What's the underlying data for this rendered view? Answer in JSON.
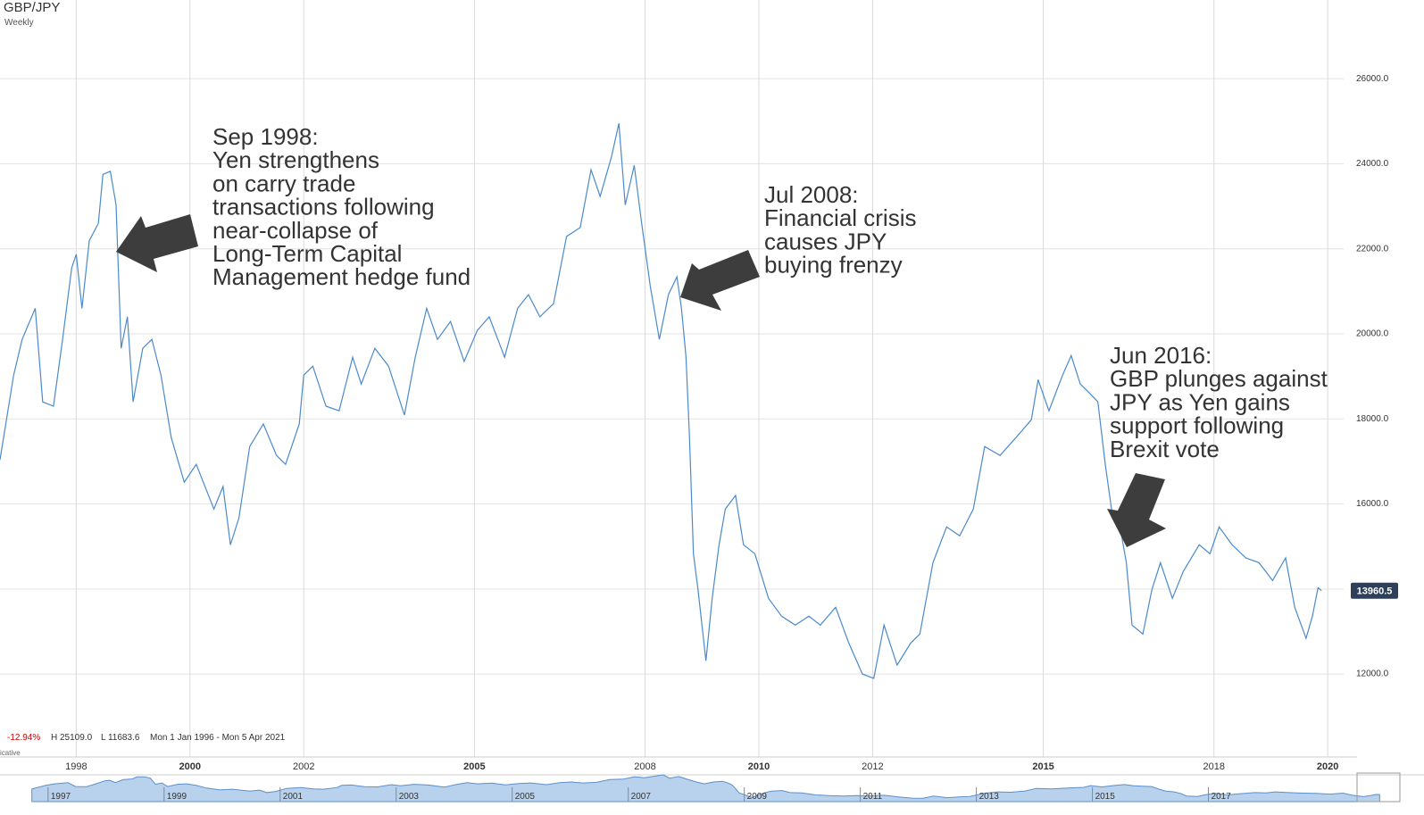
{
  "chart_data": {
    "type": "line",
    "title": "GBP/JPY",
    "subtitle": "Weekly",
    "xlim": [
      1996.66,
      2020.28
    ],
    "xticks": [
      1998,
      2000,
      2002,
      2005,
      2008,
      2010,
      2012,
      2015,
      2018,
      2020
    ],
    "ylim": [
      10050,
      27850
    ],
    "yticks": [
      {
        "value": 12000,
        "label": "12000.0"
      },
      {
        "value": 14000,
        "label": "14000.0"
      },
      {
        "value": 16000,
        "label": "16000.0"
      },
      {
        "value": 18000,
        "label": "18000.0"
      },
      {
        "value": 20000,
        "label": "20000.0"
      },
      {
        "value": 22000,
        "label": "22000.0"
      },
      {
        "value": 24000,
        "label": "24000.0"
      },
      {
        "value": 26000,
        "label": "26000.0"
      }
    ],
    "grid": true,
    "series": [
      {
        "name": "GBP/JPY",
        "color": "#4a8acb",
        "x": [
          1996.66,
          1996.9,
          1997.05,
          1997.28,
          1997.41,
          1997.6,
          1997.76,
          1997.92,
          1998.0,
          1998.1,
          1998.23,
          1998.39,
          1998.47,
          1998.6,
          1998.7,
          1998.74,
          1998.79,
          1998.9,
          1999.0,
          1999.17,
          1999.33,
          1999.49,
          1999.67,
          1999.9,
          2000.11,
          2000.42,
          2000.58,
          2000.71,
          2000.86,
          2001.05,
          2001.29,
          2001.52,
          2001.68,
          2001.92,
          2002.0,
          2002.16,
          2002.39,
          2002.62,
          2002.86,
          2003.01,
          2003.25,
          2003.49,
          2003.77,
          2003.96,
          2004.16,
          2004.35,
          2004.58,
          2004.82,
          2005.05,
          2005.26,
          2005.53,
          2005.76,
          2005.95,
          2006.15,
          2006.39,
          2006.62,
          2006.86,
          2007.05,
          2007.21,
          2007.41,
          2007.54,
          2007.65,
          2007.81,
          2007.94,
          2008.09,
          2008.25,
          2008.41,
          2008.56,
          2008.64,
          2008.72,
          2008.78,
          2008.85,
          2008.93,
          2009.07,
          2009.18,
          2009.3,
          2009.41,
          2009.59,
          2009.73,
          2009.93,
          2010.17,
          2010.4,
          2010.64,
          2010.88,
          2011.08,
          2011.35,
          2011.58,
          2011.82,
          2012.02,
          2012.2,
          2012.43,
          2012.67,
          2012.83,
          2013.06,
          2013.3,
          2013.53,
          2013.77,
          2013.97,
          2014.24,
          2014.52,
          2014.79,
          2014.91,
          2015.1,
          2015.34,
          2015.49,
          2015.65,
          2015.81,
          2015.96,
          2016.09,
          2016.2,
          2016.35,
          2016.46,
          2016.56,
          2016.75,
          2016.91,
          2017.06,
          2017.27,
          2017.46,
          2017.74,
          2017.93,
          2018.09,
          2018.32,
          2018.56,
          2018.79,
          2019.03,
          2019.26,
          2019.42,
          2019.62,
          2019.73,
          2019.83,
          2019.89
        ],
        "values": [
          17040,
          19030,
          19870,
          20600,
          18400,
          18300,
          19870,
          21550,
          21870,
          20600,
          22190,
          22600,
          23750,
          23820,
          23030,
          21550,
          19660,
          20400,
          18400,
          19660,
          19870,
          19030,
          17560,
          16510,
          16930,
          15880,
          16410,
          15040,
          15670,
          17350,
          17880,
          17140,
          16930,
          17880,
          19030,
          19240,
          18300,
          18190,
          19450,
          18820,
          19660,
          19240,
          18090,
          19450,
          20600,
          19870,
          20290,
          19350,
          20080,
          20400,
          19450,
          20600,
          20920,
          20400,
          20710,
          22290,
          22500,
          23860,
          23230,
          24170,
          24950,
          23030,
          23960,
          22600,
          21130,
          19870,
          20920,
          21340,
          20600,
          19450,
          17560,
          14830,
          13990,
          12310,
          13780,
          15040,
          15880,
          16200,
          15040,
          14830,
          13780,
          13360,
          13150,
          13360,
          13150,
          13570,
          12730,
          12000,
          11900,
          13150,
          12210,
          12730,
          12940,
          14620,
          15460,
          15250,
          15880,
          17350,
          17140,
          17560,
          17980,
          18920,
          18190,
          19030,
          19490,
          18820,
          18610,
          18400,
          16930,
          15880,
          15460,
          14620,
          13150,
          12940,
          13990,
          14620,
          13780,
          14410,
          15040,
          14830,
          15460,
          15040,
          14730,
          14620,
          14200,
          14730,
          13570,
          12840,
          13360,
          14030,
          13960.5
        ]
      }
    ],
    "last_value": 13960.5,
    "last_label": "13960.5",
    "stats": {
      "change": "-12.94%",
      "high": "H 25109.0",
      "low": "L 11683.6",
      "range": "Mon 1 Jan 1996 - Mon 5 Apr 2021",
      "note": "icative"
    },
    "annotations": [
      {
        "lines": [
          "Sep 1998:",
          "Yen strengthens",
          "on carry trade",
          "transactions following",
          "near-collapse of",
          "Long-Term Capital",
          "Management hedge fund"
        ]
      },
      {
        "lines": [
          "Jul 2008:",
          "Financial crisis",
          "causes JPY",
          "buying frenzy"
        ]
      },
      {
        "lines": [
          "Jun 2016:",
          "GBP plunges against",
          "JPY as Yen gains",
          "support following",
          "Brexit vote"
        ]
      }
    ],
    "navigator": {
      "xlim": [
        1996.11,
        2019.5
      ],
      "xticks": [
        1997,
        1999,
        2001,
        2003,
        2005,
        2007,
        2009,
        2011,
        2013,
        2015,
        2017
      ]
    }
  }
}
